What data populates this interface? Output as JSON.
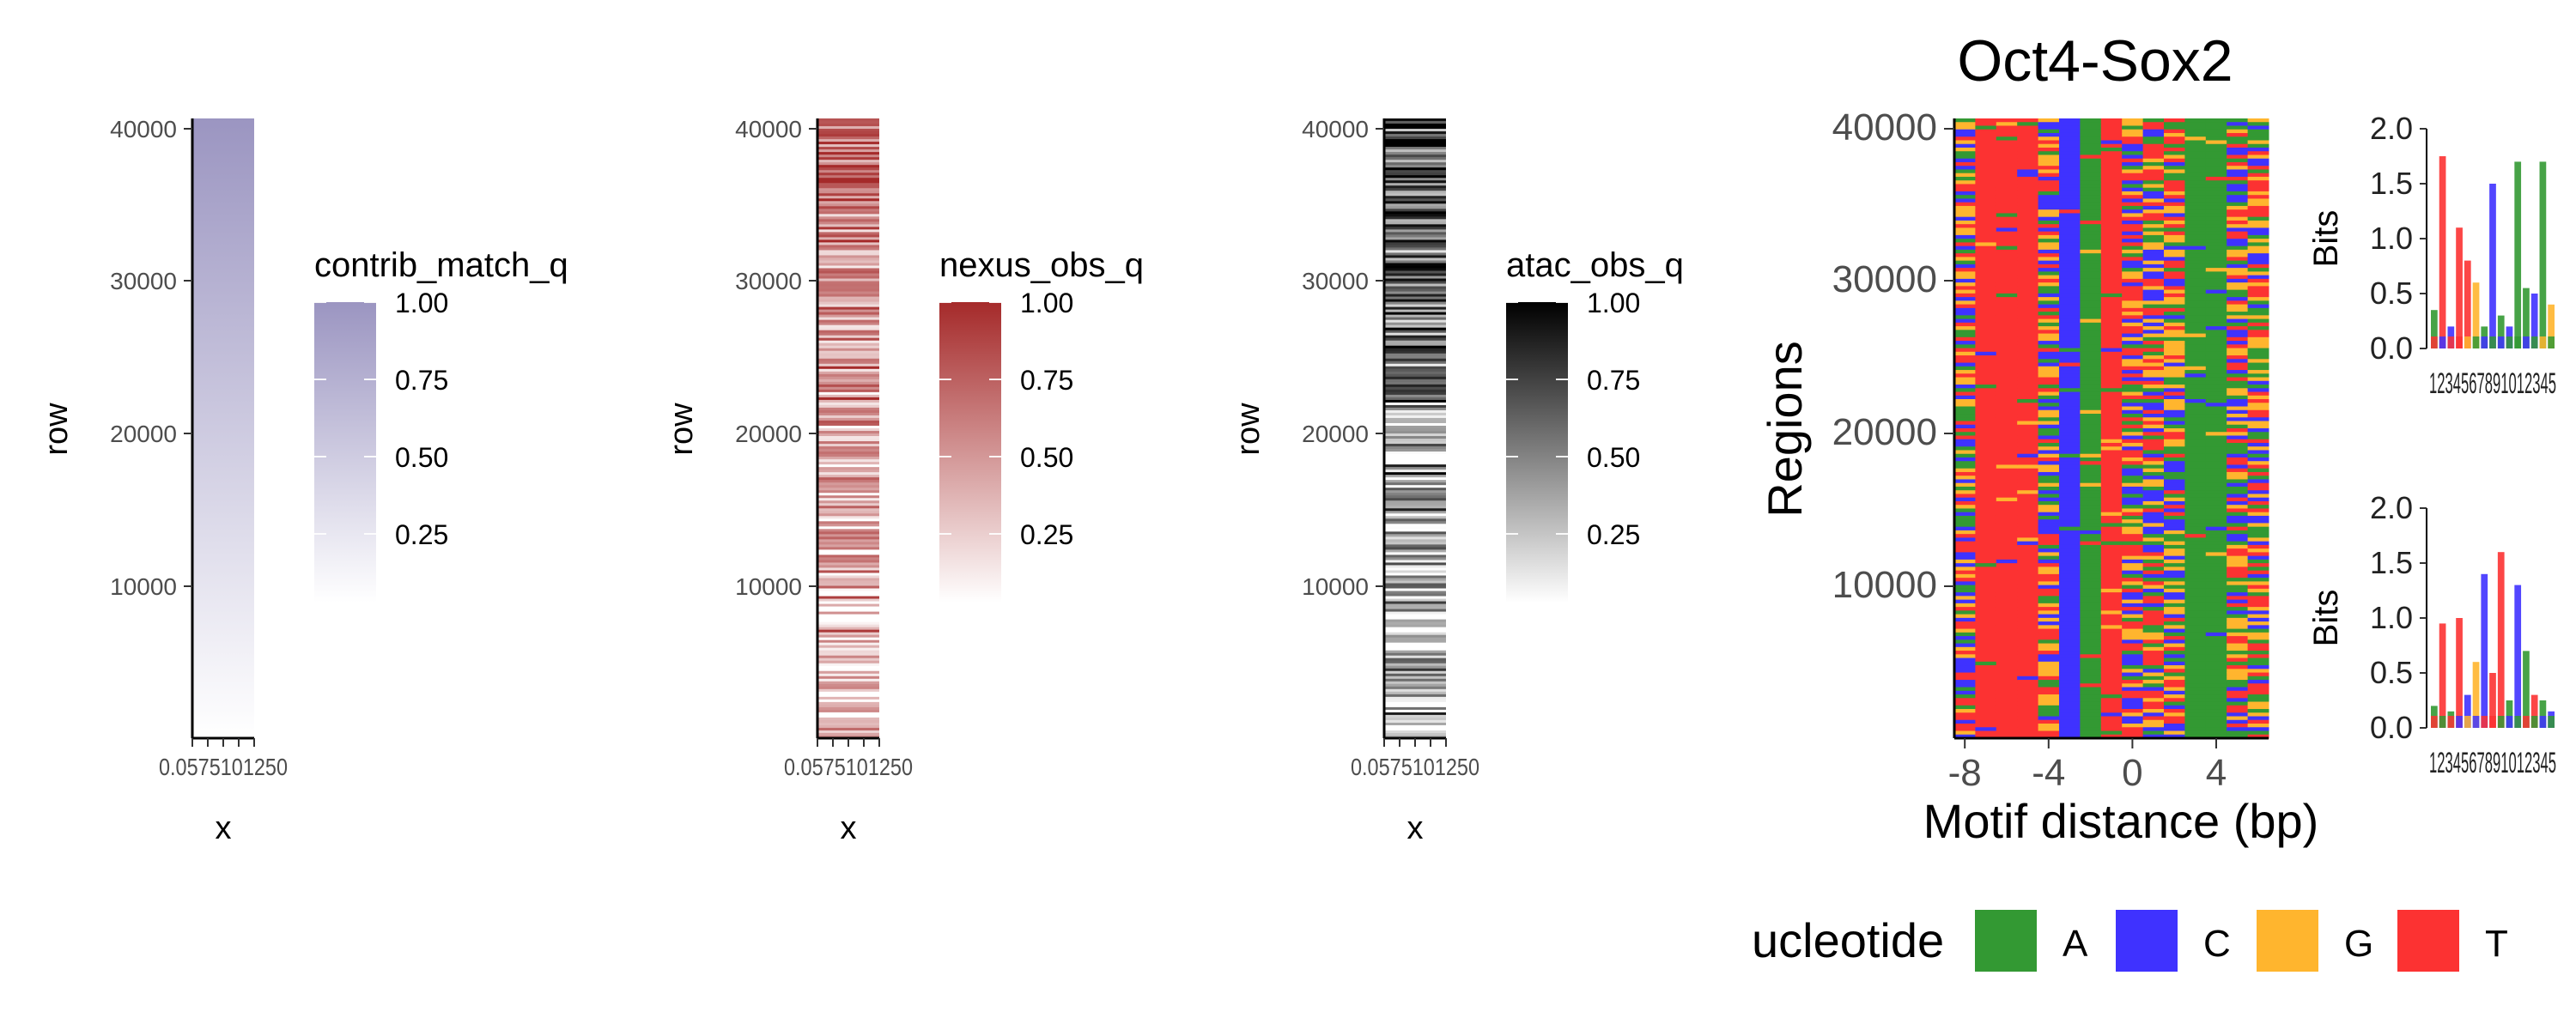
{
  "figure": {
    "panels": [
      {
        "id": "contrib",
        "ylabel": "row",
        "xlabel": "x",
        "y_ticks": [
          "10000",
          "20000",
          "30000",
          "40000"
        ],
        "x_tick_text": "0.0575101250",
        "legend_title": "contrib_match_q",
        "legend_ticks": [
          "1.00",
          "0.75",
          "0.50",
          "0.25"
        ],
        "color_high": "#9b95c1",
        "color_low": "#ffffff"
      },
      {
        "id": "nexus",
        "ylabel": "row",
        "xlabel": "x",
        "y_ticks": [
          "10000",
          "20000",
          "30000",
          "40000"
        ],
        "x_tick_text": "0.0575101250",
        "legend_title": "nexus_obs_q",
        "legend_ticks": [
          "1.00",
          "0.75",
          "0.50",
          "0.25"
        ],
        "color_high": "#a52a2a",
        "color_low": "#ffffff"
      },
      {
        "id": "atac",
        "ylabel": "row",
        "xlabel": "x",
        "y_ticks": [
          "10000",
          "20000",
          "30000",
          "40000"
        ],
        "x_tick_text": "0.0575101250",
        "legend_title": "atac_obs_q",
        "legend_ticks": [
          "1.00",
          "0.75",
          "0.50",
          "0.25"
        ],
        "color_high": "#000000",
        "color_low": "#ffffff"
      }
    ],
    "seq": {
      "title": "Oct4-Sox2",
      "ylabel": "Regions",
      "xlabel": "Motif distance (bp)",
      "y_ticks": [
        "10000",
        "20000",
        "30000",
        "40000"
      ],
      "x_ticks": [
        "-8",
        "-4",
        "0",
        "4"
      ]
    },
    "logos": [
      {
        "ylabel": "Bits",
        "y_ticks": [
          "0.0",
          "0.5",
          "1.0",
          "1.5",
          "2.0"
        ],
        "x_tick_text": "1234567891012345"
      },
      {
        "ylabel": "Bits",
        "y_ticks": [
          "0.0",
          "0.5",
          "1.0",
          "1.5",
          "2.0"
        ],
        "x_tick_text": "1234567891012345"
      }
    ],
    "nucleotide_legend": {
      "title": "ucleotide",
      "items": [
        {
          "label": "A",
          "color": "#339933"
        },
        {
          "label": "C",
          "color": "#3f32ff"
        },
        {
          "label": "G",
          "color": "#ffb52e"
        },
        {
          "label": "T",
          "color": "#fc3232"
        }
      ]
    }
  },
  "chart_data": [
    {
      "type": "heatmap",
      "title": "",
      "xlabel": "x",
      "ylabel": "row",
      "ylim": [
        0,
        40700
      ],
      "y_ticks": [
        10000,
        20000,
        30000,
        40000
      ],
      "legend": {
        "title": "contrib_match_q",
        "range": [
          0,
          1.0
        ],
        "ticks": [
          0.25,
          0.5,
          0.75,
          1.0
        ]
      },
      "pattern": "smooth gradient from 0 at the bottom row to 1 at the top row"
    },
    {
      "type": "heatmap",
      "title": "",
      "xlabel": "x",
      "ylabel": "row",
      "ylim": [
        0,
        40700
      ],
      "y_ticks": [
        10000,
        20000,
        30000,
        40000
      ],
      "legend": {
        "title": "nexus_obs_q",
        "range": [
          0,
          1.0
        ],
        "ticks": [
          0.25,
          0.5,
          0.75,
          1.0
        ]
      },
      "pattern": "noisy quantile stripes, increasing toward the top"
    },
    {
      "type": "heatmap",
      "title": "",
      "xlabel": "x",
      "ylabel": "row",
      "ylim": [
        0,
        40700
      ],
      "y_ticks": [
        10000,
        20000,
        30000,
        40000
      ],
      "legend": {
        "title": "atac_obs_q",
        "range": [
          0,
          1.0
        ],
        "ticks": [
          0.25,
          0.5,
          0.75,
          1.0
        ]
      },
      "pattern": "noisy quantile stripes, increasing toward the top"
    },
    {
      "type": "heatmap",
      "title": "Oct4-Sox2",
      "xlabel": "Motif distance (bp)",
      "ylabel": "Regions",
      "xlim": [
        -8.5,
        6.5
      ],
      "ylim": [
        0,
        40700
      ],
      "x_ticks": [
        -8,
        -4,
        0,
        4
      ],
      "y_ticks": [
        10000,
        20000,
        30000,
        40000
      ],
      "positions": [
        -8,
        -7,
        -6,
        -5,
        -4,
        -3,
        -2,
        -1,
        0,
        1,
        2,
        3,
        4,
        5,
        6
      ],
      "dominant_base": [
        "mixed",
        "T",
        "T",
        "T",
        "mixed",
        "C",
        "A",
        "T",
        "mixed",
        "mixed",
        "mixed",
        "A",
        "A",
        "mixed",
        "mixed"
      ],
      "legend": {
        "title": "ucleotide",
        "entries": [
          "A",
          "C",
          "G",
          "T"
        ]
      }
    },
    {
      "type": "bar",
      "ylabel": "Bits",
      "ylim": [
        0,
        2.0
      ],
      "y_ticks": [
        0.0,
        0.5,
        1.0,
        1.5,
        2.0
      ],
      "categories": [
        1,
        2,
        3,
        4,
        5,
        6,
        7,
        8,
        9,
        10,
        11,
        12,
        13,
        14,
        15
      ],
      "values": [
        0.35,
        1.75,
        0.2,
        1.1,
        0.8,
        0.6,
        0.2,
        1.5,
        0.3,
        0.2,
        1.7,
        0.55,
        0.5,
        1.7,
        0.4
      ],
      "colors": [
        "#339933",
        "#fc3232",
        "#3f32ff",
        "#fc3232",
        "#fc3232",
        "#ffb52e",
        "#339933",
        "#3f32ff",
        "#339933",
        "#3f32ff",
        "#339933",
        "#339933",
        "#3f32ff",
        "#339933",
        "#ffb52e"
      ]
    },
    {
      "type": "bar",
      "ylabel": "Bits",
      "ylim": [
        0,
        2.0
      ],
      "y_ticks": [
        0.0,
        0.5,
        1.0,
        1.5,
        2.0
      ],
      "categories": [
        1,
        2,
        3,
        4,
        5,
        6,
        7,
        8,
        9,
        10,
        11,
        12,
        13,
        14,
        15
      ],
      "values": [
        0.2,
        0.95,
        0.15,
        1.0,
        0.3,
        0.6,
        1.4,
        0.5,
        1.6,
        0.25,
        1.3,
        0.7,
        0.3,
        0.25,
        0.15
      ],
      "colors": [
        "#339933",
        "#fc3232",
        "#339933",
        "#fc3232",
        "#3f32ff",
        "#ffb52e",
        "#3f32ff",
        "#fc3232",
        "#fc3232",
        "#339933",
        "#3f32ff",
        "#339933",
        "#fc3232",
        "#339933",
        "#3f32ff"
      ]
    }
  ]
}
